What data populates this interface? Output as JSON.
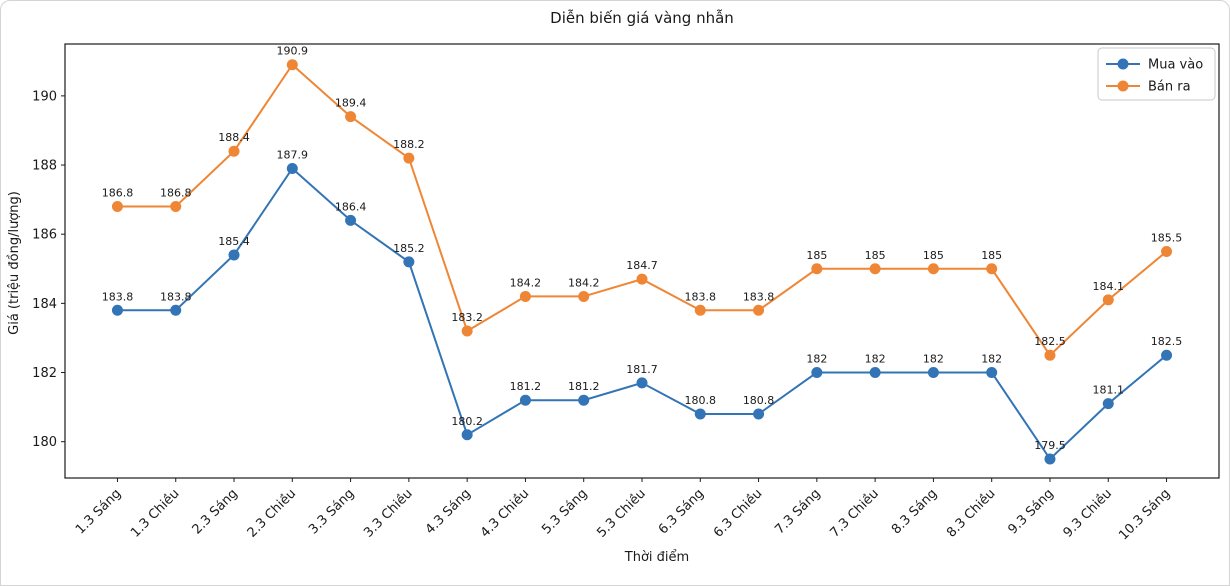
{
  "chart_data": {
    "type": "line",
    "title": "Diễn biến giá vàng nhẫn",
    "xlabel": "Thời điểm",
    "ylabel": "Giá (triệu đồng/lượng)",
    "categories": [
      "1.3 Sáng",
      "1.3 Chiều",
      "2.3 Sáng",
      "2.3 Chiều",
      "3.3 Sáng",
      "3.3 Chiều",
      "4.3 Sáng",
      "4.3 Chiều",
      "5.3 Sáng",
      "5.3 Chiều",
      "6.3 Sáng",
      "6.3 Chiều",
      "7.3 Sáng",
      "7.3 Chiều",
      "8.3 Sáng",
      "8.3 Chiều",
      "9.3 Sáng",
      "9.3 Chiều",
      "10.3 Sáng"
    ],
    "series": [
      {
        "name": "Mua vào",
        "color": "#3274b5",
        "values": [
          183.8,
          183.8,
          185.4,
          187.9,
          186.4,
          185.2,
          180.2,
          181.2,
          181.2,
          181.7,
          180.8,
          180.8,
          182,
          182,
          182,
          182,
          179.5,
          181.1,
          182.5
        ]
      },
      {
        "name": "Bán ra",
        "color": "#ef8636",
        "values": [
          186.8,
          186.8,
          188.4,
          190.9,
          189.4,
          188.2,
          183.2,
          184.2,
          184.2,
          184.7,
          183.8,
          183.8,
          185,
          185,
          185,
          185,
          182.5,
          184.1,
          185.5
        ]
      }
    ],
    "yticks": [
      180,
      182,
      184,
      186,
      188,
      190
    ],
    "ylim": [
      178.95,
      191.5
    ],
    "grid": false,
    "markers": true,
    "point_labels": true,
    "legend_position": "upper right",
    "colors": {
      "text": "#1a1a1a",
      "spine": "#1a1a1a",
      "legend_border": "#c9c9c9"
    }
  }
}
